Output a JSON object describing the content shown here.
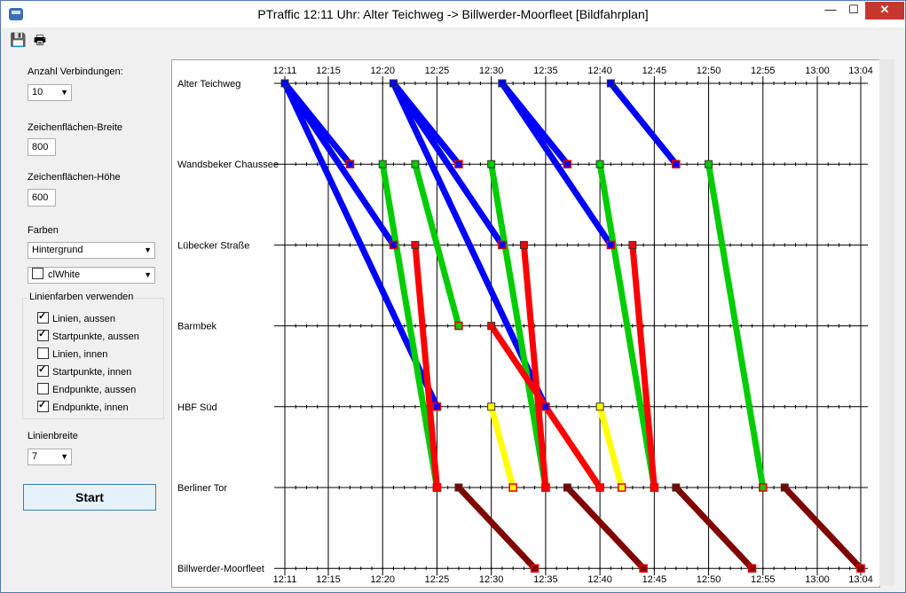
{
  "window": {
    "title": "PTraffic  12:11 Uhr: Alter Teichweg -> Billwerder-Moorfleet  [Bildfahrplan]",
    "min_glyph": "—",
    "max_glyph": "☐",
    "close_glyph": "✕"
  },
  "toolbar": {
    "save_icon": "💾",
    "print_icon": "🖶"
  },
  "panel": {
    "connections_label": "Anzahl Verbindungen:",
    "connections_value": "10",
    "width_label": "Zeichenflächen-Breite",
    "width_value": "800",
    "height_label": "Zeichenflächen-Höhe",
    "height_value": "600",
    "colors_label": "Farben",
    "color_target": "Hintergrund",
    "color_value": "clWhite",
    "line_colors_label": "Linienfarben verwenden",
    "checks": [
      {
        "label": "Linien, aussen",
        "checked": true
      },
      {
        "label": "Startpunkte, aussen",
        "checked": true
      },
      {
        "label": "Linien, innen",
        "checked": false
      },
      {
        "label": "Startpunkte, innen",
        "checked": true
      },
      {
        "label": "Endpunkte, aussen",
        "checked": false
      },
      {
        "label": "Endpunkte, innen",
        "checked": true
      }
    ],
    "linewidth_label": "Linienbreite",
    "linewidth_value": "7",
    "start_label": "Start"
  },
  "chart_data": {
    "type": "line",
    "stations": [
      "Alter Teichweg",
      "Wandsbeker Chaussee",
      "Lübecker Straße",
      "Barmbek",
      "HBF Süd",
      "Berliner Tor",
      "Billwerder-Moorfleet"
    ],
    "time_ticks": [
      "12:11",
      "12:15",
      "12:20",
      "12:25",
      "12:30",
      "12:35",
      "12:40",
      "12:45",
      "12:50",
      "12:55",
      "13:00",
      "13:04"
    ],
    "time_range": [
      "12:11",
      "13:04"
    ],
    "grid": true,
    "segments": [
      {
        "color": "#0000ff",
        "from": {
          "station": 0,
          "time": "12:11"
        },
        "to": {
          "station": 1,
          "time": "12:17"
        }
      },
      {
        "color": "#0000ff",
        "from": {
          "station": 0,
          "time": "12:11"
        },
        "to": {
          "station": 2,
          "time": "12:21"
        }
      },
      {
        "color": "#0000ff",
        "from": {
          "station": 0,
          "time": "12:11"
        },
        "to": {
          "station": 4,
          "time": "12:25"
        }
      },
      {
        "color": "#0000ff",
        "from": {
          "station": 0,
          "time": "12:21"
        },
        "to": {
          "station": 1,
          "time": "12:27"
        }
      },
      {
        "color": "#0000ff",
        "from": {
          "station": 0,
          "time": "12:21"
        },
        "to": {
          "station": 2,
          "time": "12:31"
        }
      },
      {
        "color": "#0000ff",
        "from": {
          "station": 0,
          "time": "12:21"
        },
        "to": {
          "station": 4,
          "time": "12:35"
        }
      },
      {
        "color": "#0000ff",
        "from": {
          "station": 0,
          "time": "12:31"
        },
        "to": {
          "station": 1,
          "time": "12:37"
        }
      },
      {
        "color": "#0000ff",
        "from": {
          "station": 0,
          "time": "12:31"
        },
        "to": {
          "station": 2,
          "time": "12:41"
        }
      },
      {
        "color": "#0000ff",
        "from": {
          "station": 0,
          "time": "12:41"
        },
        "to": {
          "station": 1,
          "time": "12:47"
        }
      },
      {
        "color": "#00cc00",
        "from": {
          "station": 1,
          "time": "12:20"
        },
        "to": {
          "station": 5,
          "time": "12:25"
        }
      },
      {
        "color": "#00cc00",
        "from": {
          "station": 1,
          "time": "12:23"
        },
        "to": {
          "station": 3,
          "time": "12:27"
        }
      },
      {
        "color": "#00cc00",
        "from": {
          "station": 1,
          "time": "12:30"
        },
        "to": {
          "station": 5,
          "time": "12:35"
        }
      },
      {
        "color": "#00cc00",
        "from": {
          "station": 1,
          "time": "12:40"
        },
        "to": {
          "station": 5,
          "time": "12:45"
        }
      },
      {
        "color": "#00cc00",
        "from": {
          "station": 1,
          "time": "12:50"
        },
        "to": {
          "station": 5,
          "time": "12:55"
        }
      },
      {
        "color": "#ff0000",
        "from": {
          "station": 2,
          "time": "12:23"
        },
        "to": {
          "station": 5,
          "time": "12:25"
        }
      },
      {
        "color": "#ff0000",
        "from": {
          "station": 2,
          "time": "12:33"
        },
        "to": {
          "station": 5,
          "time": "12:35"
        }
      },
      {
        "color": "#ff0000",
        "from": {
          "station": 2,
          "time": "12:43"
        },
        "to": {
          "station": 5,
          "time": "12:45"
        }
      },
      {
        "color": "#ff0000",
        "from": {
          "station": 3,
          "time": "12:30"
        },
        "to": {
          "station": 5,
          "time": "12:40"
        }
      },
      {
        "color": "#ffff00",
        "from": {
          "station": 4,
          "time": "12:30"
        },
        "to": {
          "station": 5,
          "time": "12:32"
        }
      },
      {
        "color": "#ffff00",
        "from": {
          "station": 4,
          "time": "12:40"
        },
        "to": {
          "station": 5,
          "time": "12:42"
        }
      },
      {
        "color": "#800000",
        "from": {
          "station": 5,
          "time": "12:27"
        },
        "to": {
          "station": 6,
          "time": "12:34"
        }
      },
      {
        "color": "#800000",
        "from": {
          "station": 5,
          "time": "12:37"
        },
        "to": {
          "station": 6,
          "time": "12:44"
        }
      },
      {
        "color": "#800000",
        "from": {
          "station": 5,
          "time": "12:47"
        },
        "to": {
          "station": 6,
          "time": "12:54"
        }
      },
      {
        "color": "#800000",
        "from": {
          "station": 5,
          "time": "12:57"
        },
        "to": {
          "station": 6,
          "time": "13:04"
        }
      }
    ]
  }
}
